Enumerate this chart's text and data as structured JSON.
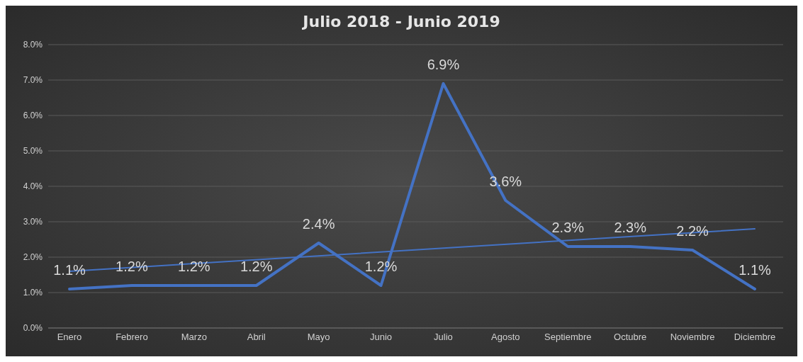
{
  "chart_data": {
    "type": "line",
    "title": "Julio 2018 - Junio 2019",
    "categories": [
      "Enero",
      "Febrero",
      "Marzo",
      "Abril",
      "Mayo",
      "Junio",
      "Julio",
      "Agosto",
      "Septiembre",
      "Octubre",
      "Noviembre",
      "Diciembre"
    ],
    "series": [
      {
        "color": "#4472c4",
        "values": [
          1.1,
          1.2,
          1.2,
          1.2,
          2.4,
          1.2,
          6.9,
          3.6,
          2.3,
          2.3,
          2.2,
          1.1
        ],
        "value_labels": [
          "1.1%",
          "1.2%",
          "1.2%",
          "1.2%",
          "2.4%",
          "1.2%",
          "6.9%",
          "3.6%",
          "2.3%",
          "2.3%",
          "2.2%",
          "1.1%"
        ]
      },
      {
        "type": "line",
        "color": "#4472c4",
        "x": [
          "Enero",
          "Diciembre"
        ],
        "values": [
          1.6,
          2.8
        ]
      }
    ],
    "ylim": [
      0,
      8
    ],
    "yticks": [
      {
        "value": 0,
        "label": "0.0%"
      },
      {
        "value": 1,
        "label": "1.0%"
      },
      {
        "value": 2,
        "label": "2.0%"
      },
      {
        "value": 3,
        "label": "3.0%"
      },
      {
        "value": 4,
        "label": "4.0%"
      },
      {
        "value": 5,
        "label": "5.0%"
      },
      {
        "value": 6,
        "label": "6.0%"
      },
      {
        "value": 7,
        "label": "7.0%"
      },
      {
        "value": 8,
        "label": "8.0%"
      }
    ],
    "grid": "y"
  }
}
